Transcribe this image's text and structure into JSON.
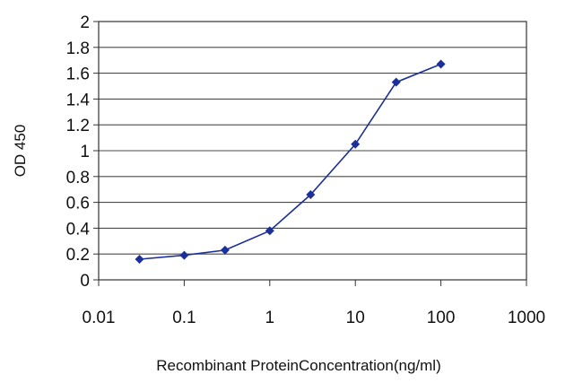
{
  "chart_data": {
    "type": "line",
    "xscale": "log",
    "xlabel": "Recombinant ProteinConcentration(ng/ml)",
    "ylabel": "OD 450",
    "xlim": [
      0.01,
      1000
    ],
    "ylim": [
      0,
      2
    ],
    "xticks": [
      "0.01",
      "0.1",
      "1",
      "10",
      "100",
      "1000"
    ],
    "yticks": [
      "0",
      "0.2",
      "0.4",
      "0.6",
      "0.8",
      "1",
      "1.2",
      "1.4",
      "1.6",
      "1.8",
      "2"
    ],
    "grid": true,
    "series": [
      {
        "x": [
          0.03,
          0.1,
          0.3,
          1,
          3,
          10,
          30,
          100
        ],
        "y": [
          0.16,
          0.19,
          0.23,
          0.38,
          0.66,
          1.05,
          1.53,
          1.67
        ],
        "color": "#1c2f9a"
      }
    ]
  }
}
